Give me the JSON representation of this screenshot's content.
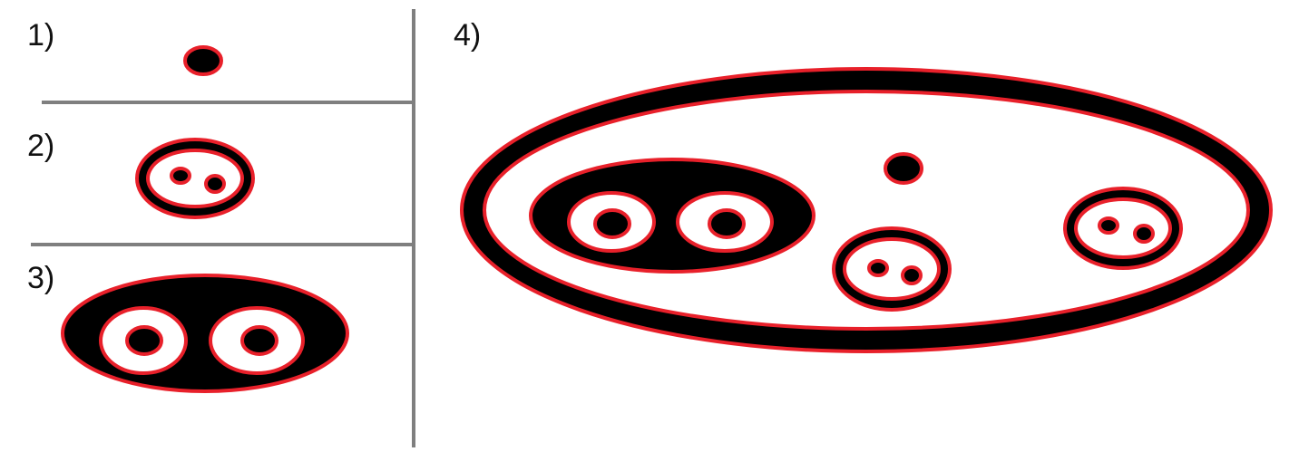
{
  "panels": [
    {
      "label": "1)"
    },
    {
      "label": "2)"
    },
    {
      "label": "3)"
    },
    {
      "label": "4)"
    }
  ],
  "colors": {
    "fill": "#000000",
    "outline": "#e8202a",
    "background": "#ffffff",
    "divider": "#7f7f7f",
    "label": "#111111"
  }
}
